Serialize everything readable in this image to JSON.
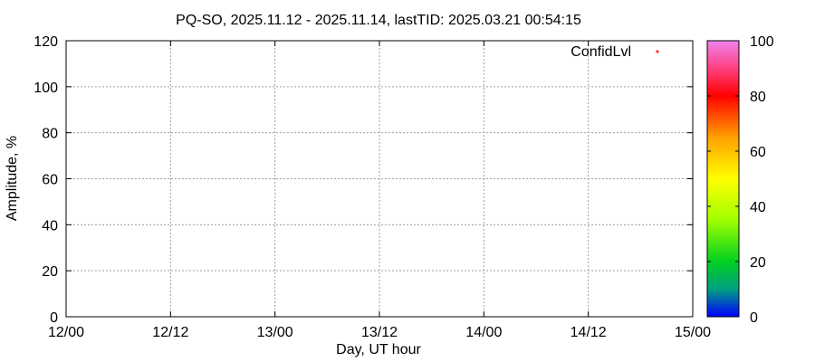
{
  "chart_data": {
    "type": "scatter",
    "title": "PQ-SO, 2025.11.12 - 2025.11.14, lastTID: 2025.03.21 00:54:15",
    "xlabel": "Day, UT hour",
    "ylabel": "Amplitude, %",
    "xticks": [
      "12/00",
      "12/12",
      "13/00",
      "13/12",
      "14/00",
      "14/12",
      "15/00"
    ],
    "yticks": [
      "0",
      "20",
      "40",
      "60",
      "80",
      "100",
      "120"
    ],
    "ylim": [
      0,
      120
    ],
    "grid": true,
    "legend": {
      "label": "ConfidLvl",
      "placement": "top-right",
      "marker_color": "#ff0000"
    },
    "series": [
      {
        "name": "ConfidLvl",
        "points": []
      }
    ],
    "colorbar": {
      "range": [
        0,
        100
      ],
      "ticks": [
        "0",
        "20",
        "40",
        "60",
        "80",
        "100"
      ],
      "stops": [
        {
          "v": 0,
          "color": "#0000ff"
        },
        {
          "v": 10,
          "color": "#00a080"
        },
        {
          "v": 20,
          "color": "#00d020"
        },
        {
          "v": 35,
          "color": "#a0ff00"
        },
        {
          "v": 50,
          "color": "#ffff00"
        },
        {
          "v": 65,
          "color": "#ffa000"
        },
        {
          "v": 80,
          "color": "#ff0000"
        },
        {
          "v": 90,
          "color": "#ff4080"
        },
        {
          "v": 100,
          "color": "#ee82ee"
        }
      ]
    }
  }
}
